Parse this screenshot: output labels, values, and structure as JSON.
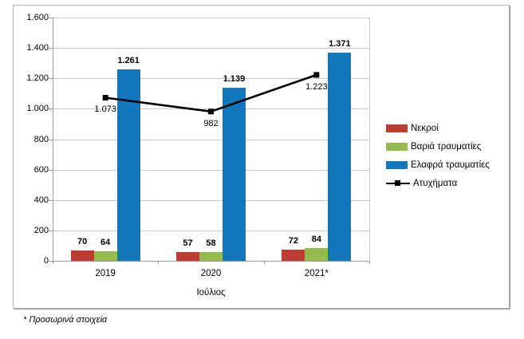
{
  "chart_data": {
    "type": "bar+line",
    "title": "",
    "categories": [
      "2019",
      "2020",
      "2021*"
    ],
    "xlabel": "Ιούλιος",
    "ylabel": "",
    "ylim": [
      0,
      1600
    ],
    "ytick_step": 200,
    "ytick_labels": [
      "0",
      "200",
      "400",
      "600",
      "800",
      "1.000",
      "1.200",
      "1.400",
      "1.600"
    ],
    "grid": true,
    "legend_position": "right",
    "series": [
      {
        "name": "Νεκροί",
        "type": "bar",
        "color": "#bd3c33",
        "values": [
          70,
          57,
          72
        ],
        "value_labels": [
          "70",
          "57",
          "72"
        ]
      },
      {
        "name": "Βαριά τραυματίες",
        "type": "bar",
        "color": "#97ba4e",
        "values": [
          64,
          58,
          84
        ],
        "value_labels": [
          "64",
          "58",
          "84"
        ]
      },
      {
        "name": "Ελαφρά τραυματίες",
        "type": "bar",
        "color": "#1377be",
        "values": [
          1261,
          1139,
          1371
        ],
        "value_labels": [
          "1.261",
          "1.139",
          "1.371"
        ]
      },
      {
        "name": "Ατυχήματα",
        "type": "line",
        "color": "#000000",
        "values": [
          1073,
          982,
          1223
        ],
        "value_labels": [
          "1.073",
          "982",
          "1.223"
        ]
      }
    ]
  },
  "footnote": "* Προσωρινά στοιχεία"
}
